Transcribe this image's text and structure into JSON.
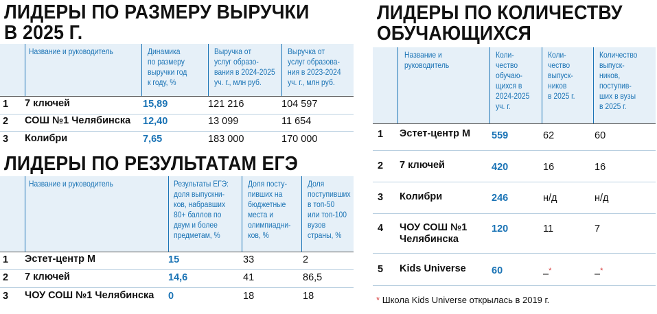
{
  "revenue": {
    "title_line1": "ЛИДЕРЫ ПО РАЗМЕРУ ВЫРУЧКИ",
    "title_line2": "В 2025 Г.",
    "headers": [
      "Название и руководитель",
      "Динамика\nпо размеру\nвыручки год\nк году, %",
      "Выручка от\nуслуг образо-\nвания в 2024-2025\nуч. г., млн руб.",
      "Выручка от\nуслуг образова-\nния в 2023-2024\nуч. г., млн руб."
    ],
    "rows": [
      {
        "rank": "1",
        "name": "7 ключей",
        "dynamics": "15,89",
        "rev2025": "121 216",
        "rev2024": "104 597"
      },
      {
        "rank": "2",
        "name": "СОШ №1 Челябинска",
        "dynamics": "12,40",
        "rev2025": "13 099",
        "rev2024": "11 654"
      },
      {
        "rank": "3",
        "name": "Колибри",
        "dynamics": "7,65",
        "rev2025": "183 000",
        "rev2024": "170 000"
      }
    ]
  },
  "ege": {
    "title": "ЛИДЕРЫ ПО РЕЗУЛЬТАТАМ ЕГЭ",
    "headers": [
      "Название и руководитель",
      "Результаты ЕГЭ:\nдоля выпускни-\nков, набравших\n80+ баллов по\nдвум и более\nпредметам, %",
      "Доля посту-\nпивших на\nбюджетные\nместа и\nолимпиадни-\nков, %",
      "Доля\nпоступивших\nв топ-50\nили топ-100\nвузов\nстраны, %"
    ],
    "rows": [
      {
        "rank": "1",
        "name": "Эстет-центр М",
        "result": "15",
        "budget": "33",
        "top": "2"
      },
      {
        "rank": "2",
        "name": "7 ключей",
        "result": "14,6",
        "budget": "41",
        "top": "86,5"
      },
      {
        "rank": "3",
        "name": "ЧОУ СОШ №1 Челябинска",
        "result": "0",
        "budget": "18",
        "top": "18"
      }
    ]
  },
  "students": {
    "title_line1": "ЛИДЕРЫ ПО КОЛИЧЕСТВУ",
    "title_line2": "ОБУЧАЮЩИХСЯ",
    "headers": [
      "Название и\nруководитель",
      "Коли-\nчество\nобучаю-\nщихся в\n2024-2025\nуч. г.",
      "Коли-\nчество\nвыпуск-\nников\nв 2025 г.",
      "Количество\nвыпуск-\nников,\nпоступив-\nших в вузы\nв 2025 г."
    ],
    "rows": [
      {
        "rank": "1",
        "name": "Эстет-центр М",
        "students": "559",
        "graduates": "62",
        "admitted": "60"
      },
      {
        "rank": "2",
        "name": "7 ключей",
        "students": "420",
        "graduates": "16",
        "admitted": "16"
      },
      {
        "rank": "3",
        "name": "Колибри",
        "students": "246",
        "graduates": "н/д",
        "admitted": "н/д"
      },
      {
        "rank": "4",
        "name": "ЧОУ СОШ №1\nЧелябинска",
        "students": "120",
        "graduates": "11",
        "admitted": "7"
      },
      {
        "rank": "5",
        "name": "Kids Universe",
        "students": "60",
        "graduates": "–",
        "admitted": "–"
      }
    ],
    "footnote_mark": "*",
    "footnote": "Школа Kids Universe открылась в 2019 г."
  }
}
